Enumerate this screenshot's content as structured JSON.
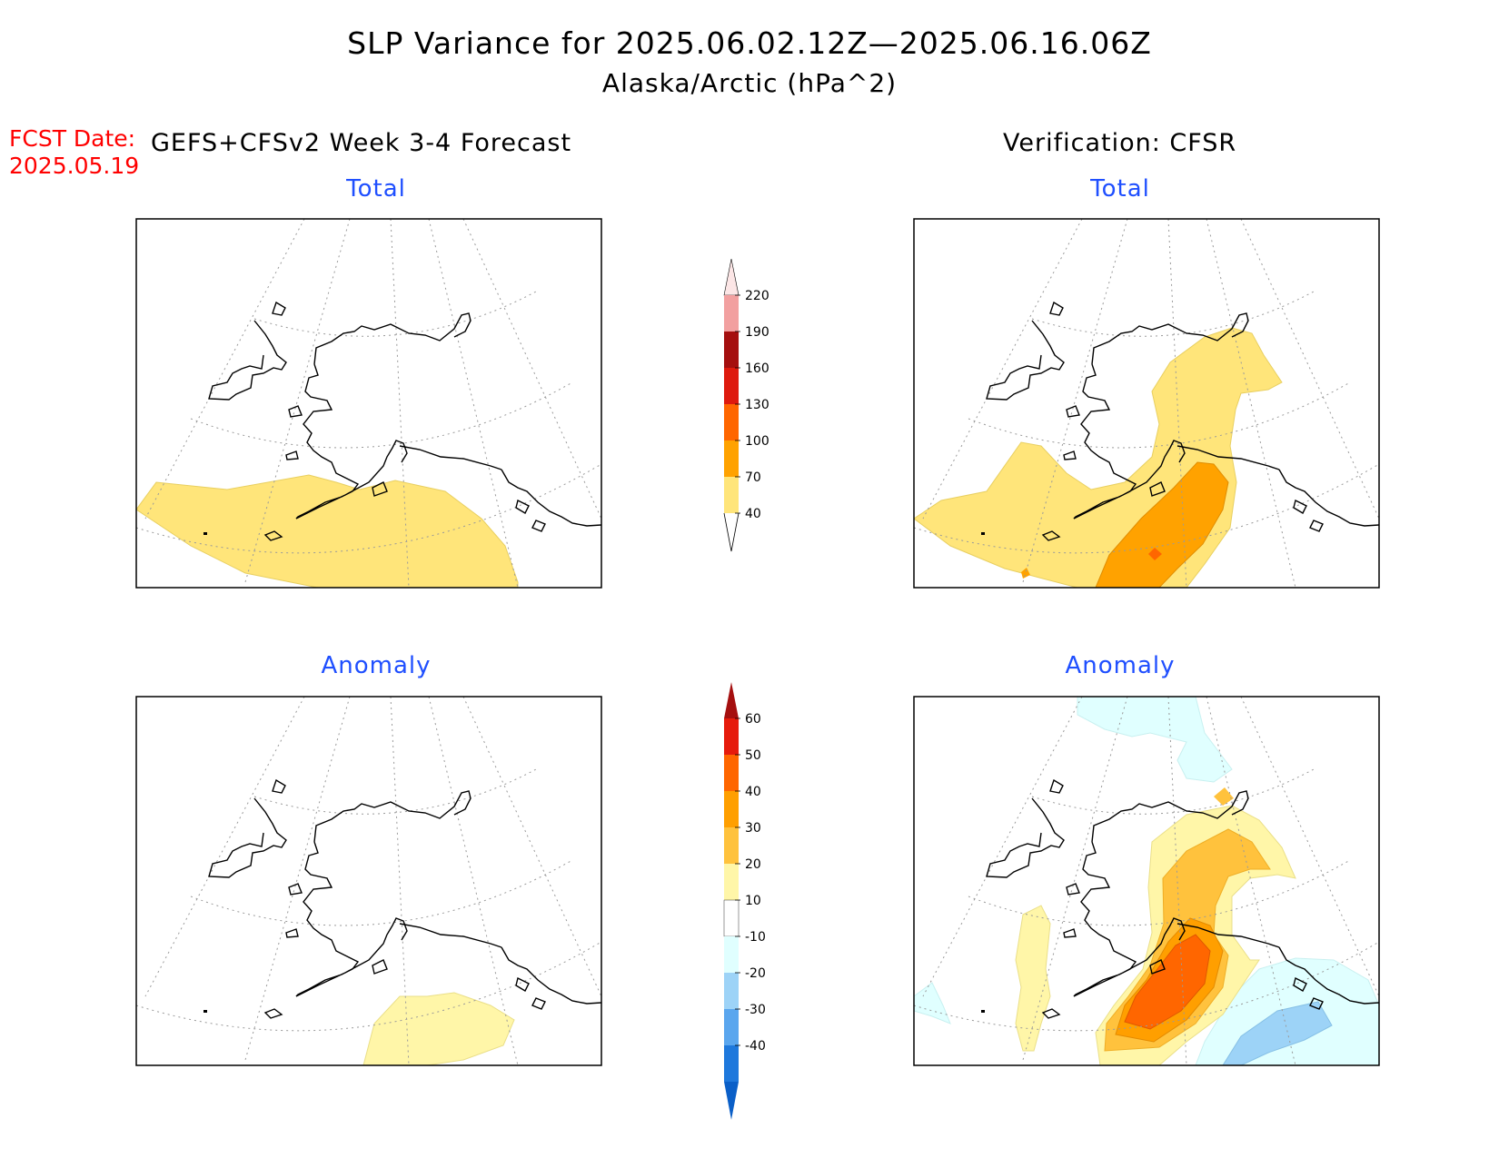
{
  "title": {
    "line1": "SLP Variance for 2025.06.02.12Z—2025.06.16.06Z",
    "line2": "Alaska/Arctic (hPa^2)"
  },
  "fcst": {
    "label": "FCST Date:",
    "date": "2025.05.19"
  },
  "headers": {
    "left": "GEFS+CFSv2 Week 3-4 Forecast",
    "right": "Verification: CFSR"
  },
  "panels": {
    "forecast_total": "Total",
    "forecast_anomaly": "Anomaly",
    "verification_total": "Total",
    "verification_anomaly": "Anomaly"
  },
  "legend_total": {
    "labels": [
      "220",
      "190",
      "160",
      "130",
      "100",
      "70",
      "40"
    ],
    "colors": [
      "#fce6e6",
      "#f2a0a0",
      "#a50f0f",
      "#de1a0e",
      "#ff6600",
      "#ffa200",
      "#ffe57a"
    ]
  },
  "legend_anomaly": {
    "labels": [
      "60",
      "50",
      "40",
      "30",
      "20",
      "10",
      "-10",
      "-20",
      "-30",
      "-40"
    ],
    "colors": [
      "#a50f0f",
      "#e61b0c",
      "#ff6600",
      "#ff9f00",
      "#ffc23d",
      "#fff6a8",
      "#ffffff",
      "#e0ffff",
      "#9dd3f7",
      "#5aa6ee",
      "#1e78dc",
      "#0a5fc8"
    ]
  }
}
